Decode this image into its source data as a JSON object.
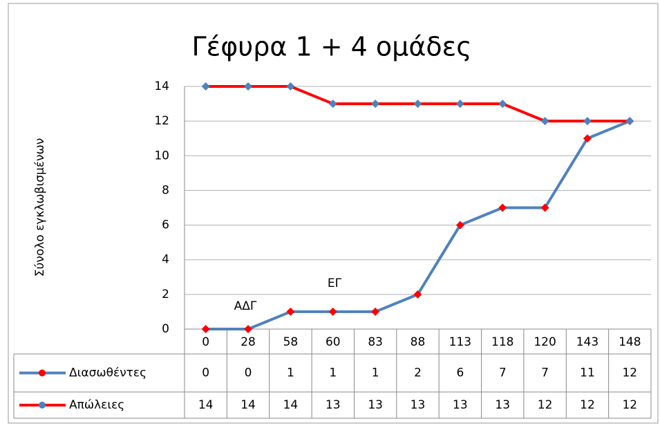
{
  "chart_data": {
    "type": "line",
    "title": "Γέφυρα 1 + 4 ομάδες",
    "y_label": "Σύνολο εγκλωβισμένων",
    "categories": [
      "0",
      "28",
      "58",
      "60",
      "83",
      "88",
      "113",
      "118",
      "120",
      "143",
      "148"
    ],
    "series": [
      {
        "name": "Διασωθέντες",
        "color": "#4f81bd",
        "marker_color": "#ff0000",
        "values": [
          0,
          0,
          1,
          1,
          1,
          2,
          6,
          7,
          7,
          11,
          12
        ]
      },
      {
        "name": "Απώλειες",
        "color": "#ff0000",
        "marker_color": "#4f81bd",
        "values": [
          14,
          14,
          14,
          13,
          13,
          13,
          13,
          13,
          12,
          12,
          12
        ]
      }
    ],
    "annotations": [
      "ΑΔΓ",
      "ΕΓ"
    ],
    "ylim": [
      0,
      14
    ],
    "yticks": [
      0,
      2,
      4,
      6,
      8,
      10,
      12,
      14
    ],
    "grid": true,
    "data_table": true
  }
}
